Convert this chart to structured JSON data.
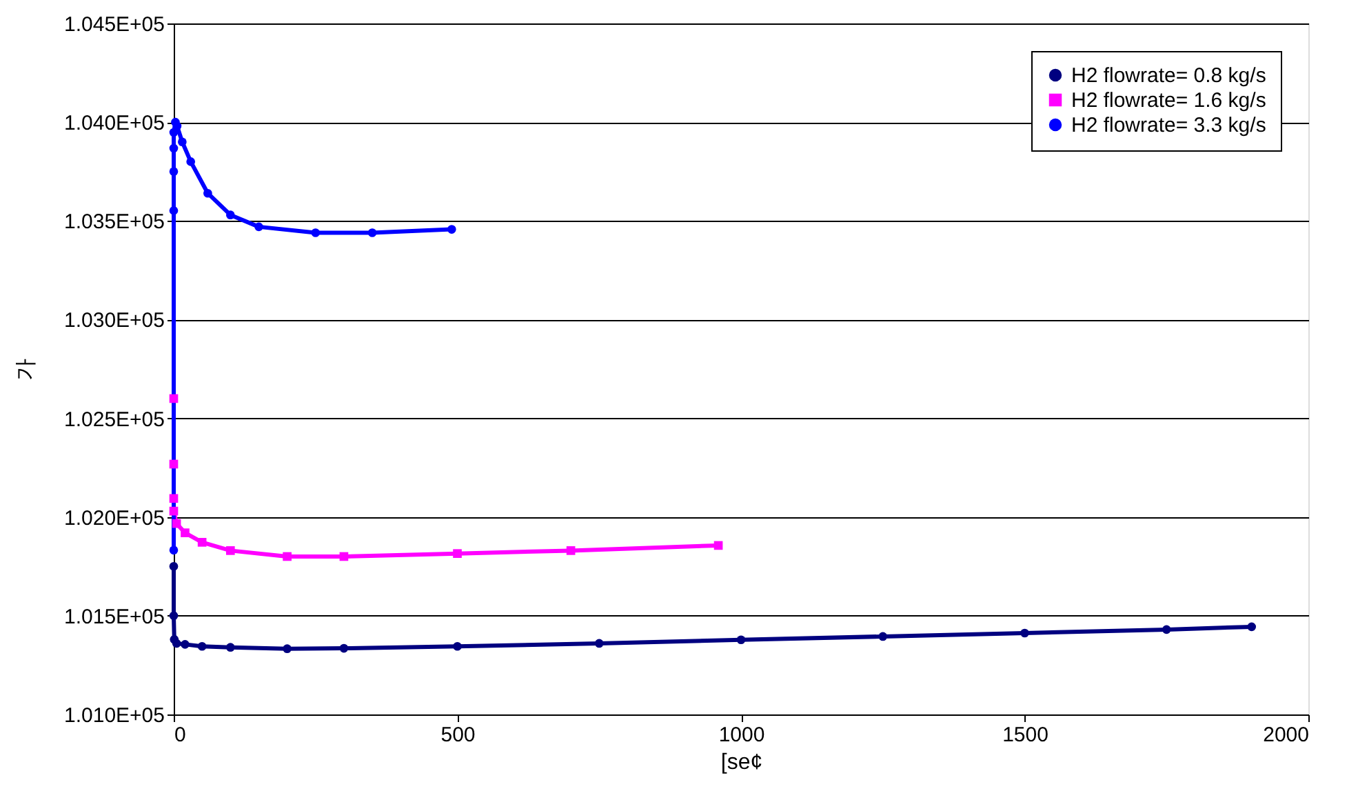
{
  "chart_data": {
    "type": "line",
    "xlabel": "[se¢",
    "ylabel": "가",
    "xlim": [
      0,
      2000
    ],
    "xticks": [
      0,
      500,
      1000,
      1500,
      2000
    ],
    "ylim": [
      101000,
      104500
    ],
    "yticks": [
      {
        "value": 101000,
        "label": "1.010E+05"
      },
      {
        "value": 101500,
        "label": "1.015E+05"
      },
      {
        "value": 102000,
        "label": "1.020E+05"
      },
      {
        "value": 102500,
        "label": "1.025E+05"
      },
      {
        "value": 103000,
        "label": "1.030E+05"
      },
      {
        "value": 103500,
        "label": "1.035E+05"
      },
      {
        "value": 104000,
        "label": "1.040E+05"
      },
      {
        "value": 104500,
        "label": "1.045E+05"
      }
    ],
    "grid": "y",
    "legend": "top right",
    "series": [
      {
        "name": "H2 flowrate= 0.8 kg/s",
        "color": "#000080",
        "marker": "circle",
        "x": [
          0,
          0,
          1,
          5,
          20,
          50,
          100,
          200,
          300,
          500,
          750,
          1000,
          1250,
          1500,
          1750,
          1900
        ],
        "values": [
          101750,
          101500,
          101380,
          101360,
          101355,
          101345,
          101340,
          101333,
          101335,
          101345,
          101360,
          101378,
          101395,
          101412,
          101430,
          101444
        ]
      },
      {
        "name": "H2 flowrate= 1.6 kg/s",
        "color": "#ff00ff",
        "marker": "square",
        "x": [
          0,
          0,
          0,
          0,
          5,
          20,
          50,
          100,
          200,
          300,
          500,
          700,
          960
        ],
        "values": [
          102600,
          102268,
          102094,
          102030,
          101967,
          101920,
          101872,
          101830,
          101800,
          101800,
          101815,
          101830,
          101856
        ]
      },
      {
        "name": "H2 flowrate= 3.3 kg/s",
        "color": "#0000ff",
        "marker": "circle",
        "x": [
          0,
          0,
          0,
          0,
          0,
          3,
          6,
          15,
          30,
          60,
          100,
          150,
          250,
          350,
          490
        ],
        "values": [
          101832,
          103552,
          103750,
          103868,
          103948,
          104000,
          103980,
          103900,
          103800,
          103640,
          103530,
          103470,
          103440,
          103440,
          103457
        ]
      }
    ]
  }
}
